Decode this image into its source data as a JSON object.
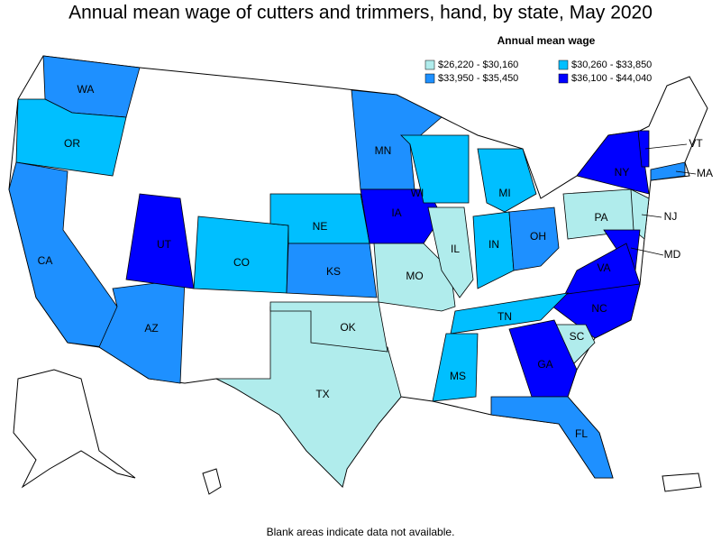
{
  "title": "Annual mean wage of cutters and trimmers, hand, by state, May 2020",
  "legend": {
    "title": "Annual mean wage",
    "items": [
      {
        "label": "$26,220 - $30,160",
        "color": "#b0ecec"
      },
      {
        "label": "$30,260 - $33,850",
        "color": "#00bfff"
      },
      {
        "label": "$33,950 - $35,450",
        "color": "#1e90ff"
      },
      {
        "label": "$36,100 - $44,040",
        "color": "#0000ff"
      }
    ]
  },
  "states": [
    {
      "label": "WA",
      "color": "#1e90ff"
    },
    {
      "label": "OR",
      "color": "#00bfff"
    },
    {
      "label": "CA",
      "color": "#1e90ff"
    },
    {
      "label": "AZ",
      "color": "#1e90ff"
    },
    {
      "label": "UT",
      "color": "#0000ff"
    },
    {
      "label": "CO",
      "color": "#00bfff"
    },
    {
      "label": "NE",
      "color": "#00bfff"
    },
    {
      "label": "KS",
      "color": "#1e90ff"
    },
    {
      "label": "MN",
      "color": "#1e90ff"
    },
    {
      "label": "IA",
      "color": "#0000ff"
    },
    {
      "label": "MO",
      "color": "#b0ecec"
    },
    {
      "label": "IL",
      "color": "#b0ecec"
    },
    {
      "label": "WI",
      "color": "#00bfff"
    },
    {
      "label": "MI",
      "color": "#00bfff"
    },
    {
      "label": "IN",
      "color": "#00bfff"
    },
    {
      "label": "OH",
      "color": "#1e90ff"
    },
    {
      "label": "PA",
      "color": "#b0ecec"
    },
    {
      "label": "NY",
      "color": "#0000ff"
    },
    {
      "label": "VT",
      "color": "#0000ff"
    },
    {
      "label": "MA",
      "color": "#1e90ff"
    },
    {
      "label": "NJ",
      "color": "#b0ecec"
    },
    {
      "label": "MD",
      "color": "#0000ff"
    },
    {
      "label": "VA",
      "color": "#0000ff"
    },
    {
      "label": "NC",
      "color": "#0000ff"
    },
    {
      "label": "SC",
      "color": "#b0ecec"
    },
    {
      "label": "GA",
      "color": "#0000ff"
    },
    {
      "label": "FL",
      "color": "#1e90ff"
    },
    {
      "label": "TN",
      "color": "#00bfff"
    },
    {
      "label": "MS",
      "color": "#00bfff"
    },
    {
      "label": "TX",
      "color": "#b0ecec"
    },
    {
      "label": "OK",
      "color": "#b0ecec"
    }
  ],
  "footnote": "Blank areas indicate data not available."
}
